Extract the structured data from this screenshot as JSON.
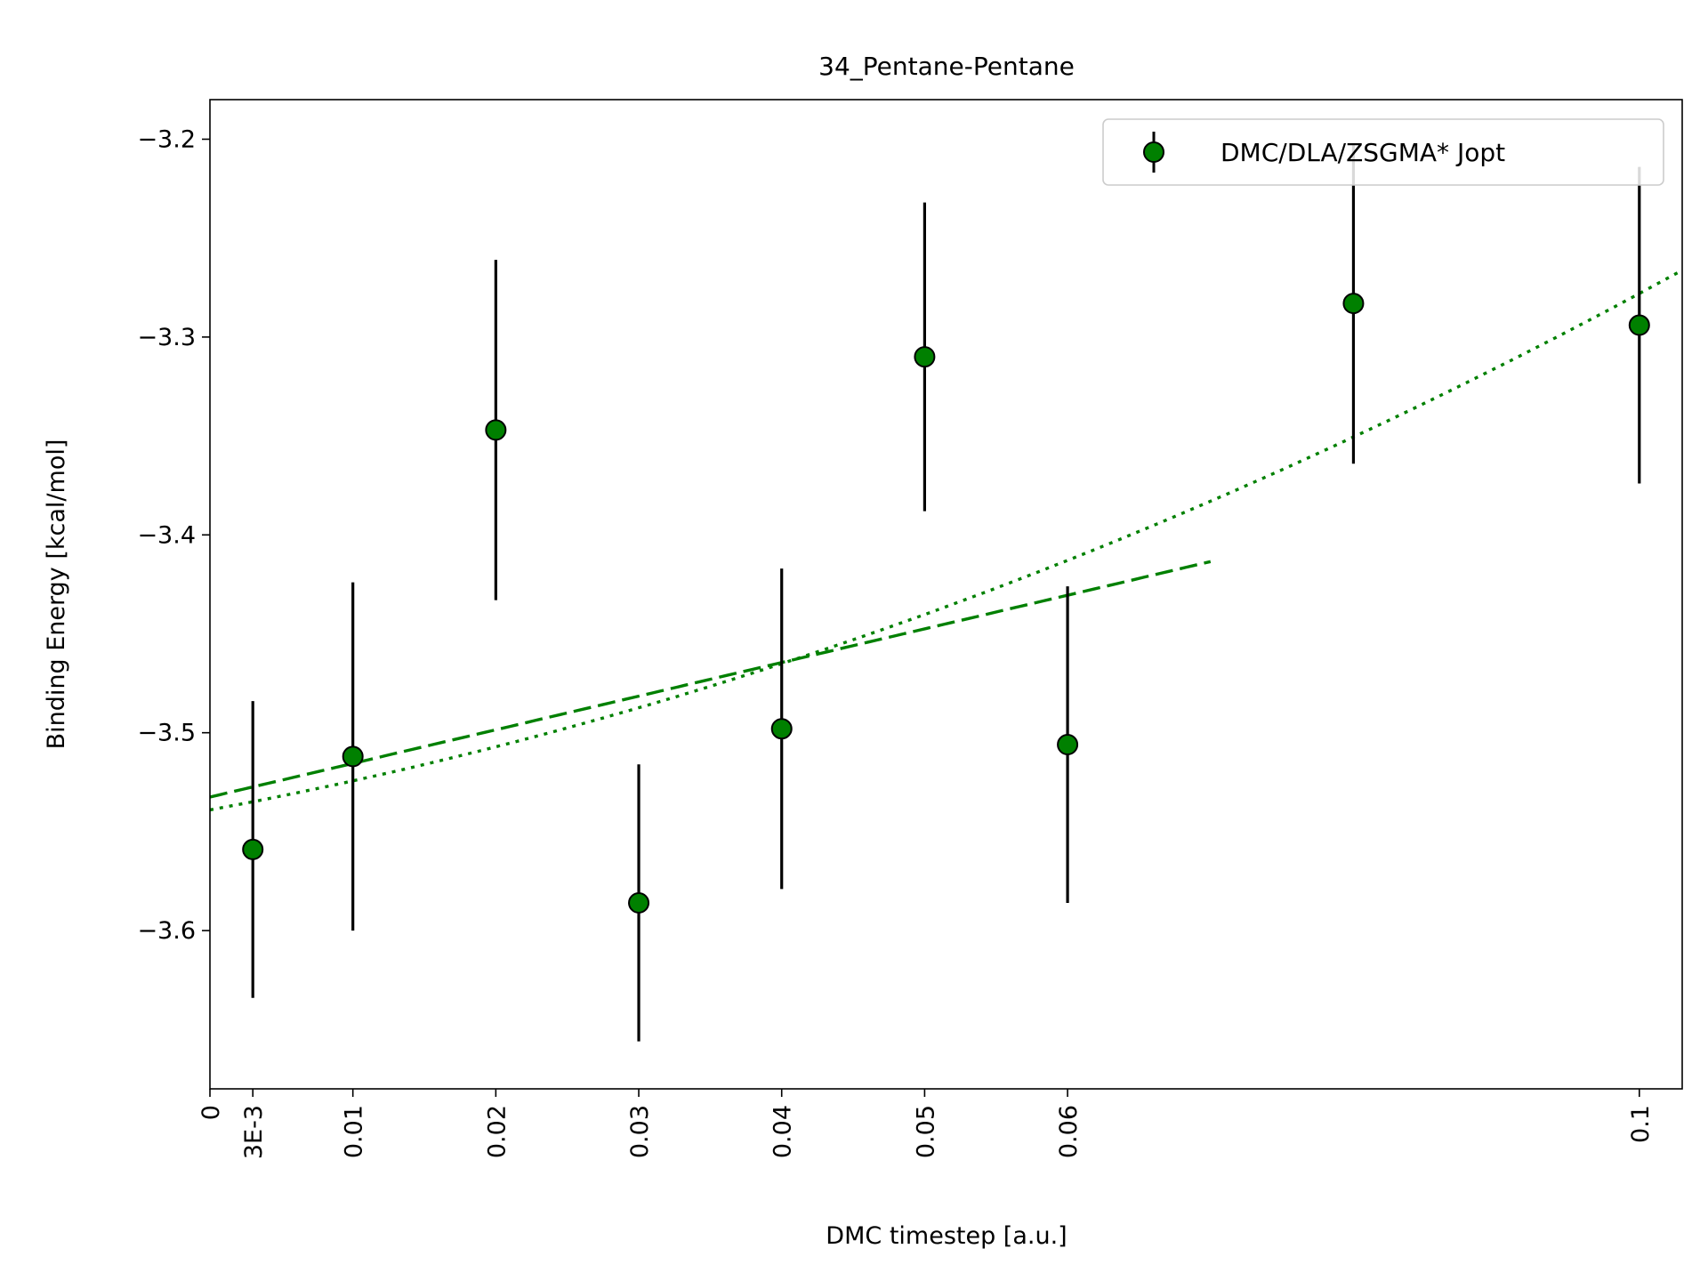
{
  "chart_data": {
    "type": "scatter",
    "title": "34_Pentane-Pentane",
    "xlabel": "DMC timestep [a.u.]",
    "ylabel": "Binding Energy [kcal/mol]",
    "xlim": [
      0,
      0.103
    ],
    "ylim": [
      -3.68,
      -3.18
    ],
    "x_ticks": [
      {
        "value": 0,
        "label": "0"
      },
      {
        "value": 0.003,
        "label": "3E-3"
      },
      {
        "value": 0.01,
        "label": "0.01"
      },
      {
        "value": 0.02,
        "label": "0.02"
      },
      {
        "value": 0.03,
        "label": "0.03"
      },
      {
        "value": 0.04,
        "label": "0.04"
      },
      {
        "value": 0.05,
        "label": "0.05"
      },
      {
        "value": 0.06,
        "label": "0.06"
      },
      {
        "value": 0.1,
        "label": "0.1"
      }
    ],
    "y_ticks": [
      {
        "value": -3.2,
        "label": "−3.2"
      },
      {
        "value": -3.3,
        "label": "−3.3"
      },
      {
        "value": -3.4,
        "label": "−3.4"
      },
      {
        "value": -3.5,
        "label": "−3.5"
      },
      {
        "value": -3.6,
        "label": "−3.6"
      }
    ],
    "grid": false,
    "legend_position": "top-right",
    "series": [
      {
        "name": "DMC/DLA/ZSGMA* Jopt",
        "color": "#008000",
        "marker": "circle",
        "points": [
          {
            "x": 0.003,
            "y": -3.559,
            "err": 0.075
          },
          {
            "x": 0.01,
            "y": -3.512,
            "err": 0.088
          },
          {
            "x": 0.02,
            "y": -3.347,
            "err": 0.086
          },
          {
            "x": 0.03,
            "y": -3.586,
            "err": 0.07
          },
          {
            "x": 0.04,
            "y": -3.498,
            "err": 0.081
          },
          {
            "x": 0.05,
            "y": -3.31,
            "err": 0.078
          },
          {
            "x": 0.06,
            "y": -3.506,
            "err": 0.08
          },
          {
            "x": 0.08,
            "y": -3.283,
            "err": 0.081
          },
          {
            "x": 0.1,
            "y": -3.294,
            "err": 0.08
          }
        ]
      }
    ],
    "fits": [
      {
        "kind": "linear",
        "style": "dashed",
        "color": "#008000",
        "x_range": [
          0,
          0.07
        ],
        "coefficients": [
          -3.5325,
          1.7
        ]
      },
      {
        "kind": "quadratic",
        "style": "dotted",
        "color": "#008000",
        "x_range": [
          0,
          0.103
        ],
        "coefficients": [
          -3.539,
          1.34,
          12.7
        ]
      }
    ]
  }
}
